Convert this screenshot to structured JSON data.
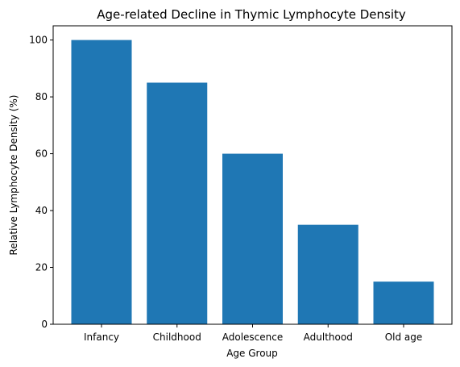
{
  "chart_data": {
    "type": "bar",
    "title": "Age-related Decline in Thymic Lymphocyte Density",
    "xlabel": "Age Group",
    "ylabel": "Relative Lymphocyte Density (%)",
    "categories": [
      "Infancy",
      "Childhood",
      "Adolescence",
      "Adulthood",
      "Old age"
    ],
    "values": [
      100,
      85,
      60,
      35,
      15
    ],
    "ylim": [
      0,
      105
    ],
    "yticks": [
      0,
      20,
      40,
      60,
      80,
      100
    ],
    "grid": false,
    "legend": "none",
    "bar_color": "#1f77b4"
  }
}
